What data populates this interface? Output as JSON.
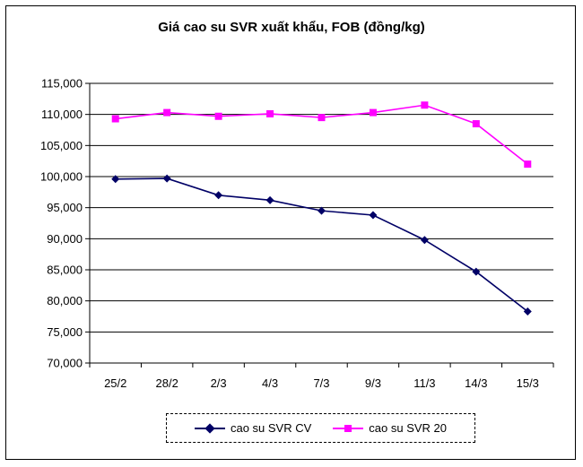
{
  "chart_data": {
    "type": "line",
    "title": "Giá cao su SVR xuất khẩu, FOB (đồng/kg)",
    "categories": [
      "25/2",
      "28/2",
      "2/3",
      "4/3",
      "7/3",
      "9/3",
      "11/3",
      "14/3",
      "15/3"
    ],
    "ylim": [
      70000,
      115000
    ],
    "yticks": [
      "70,000",
      "75,000",
      "80,000",
      "85,000",
      "90,000",
      "95,000",
      "100,000",
      "105,000",
      "110,000",
      "115,000"
    ],
    "grid": true,
    "legend_position": "bottom",
    "series": [
      {
        "name": "cao su SVR CV",
        "color": "#000066",
        "marker": "diamond",
        "values": [
          99600,
          99700,
          97000,
          96200,
          94500,
          93800,
          89800,
          84700,
          78300
        ]
      },
      {
        "name": "cao su SVR 20",
        "color": "#ff00ff",
        "marker": "square",
        "values": [
          109300,
          110300,
          109700,
          110100,
          109500,
          110300,
          111500,
          108500,
          102000
        ]
      }
    ]
  }
}
